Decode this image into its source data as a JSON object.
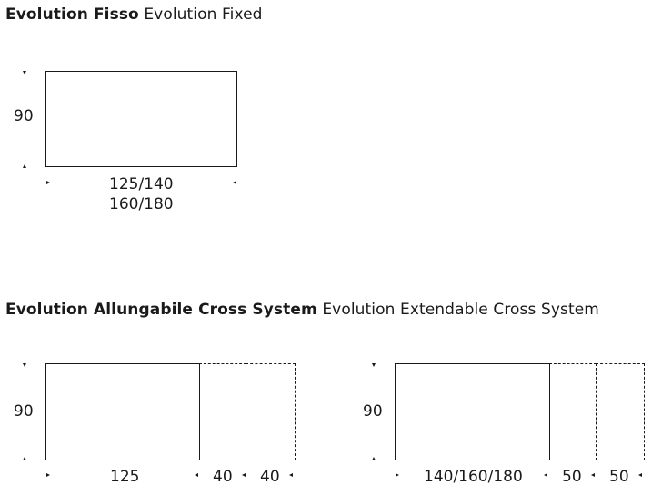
{
  "sections": [
    {
      "title_bold": "Evolution Fisso",
      "title_regular": "Evolution Fixed",
      "diagrams": [
        {
          "depth_label": "90",
          "length_label_line1": "125/140",
          "length_label_line2": "160/180"
        }
      ]
    },
    {
      "title_bold": "Evolution Allungabile Cross System",
      "title_regular": "Evolution Extendable Cross System",
      "diagrams": [
        {
          "depth_label": "90",
          "length_label": "125",
          "extension_labels": [
            "40",
            "40"
          ]
        },
        {
          "depth_label": "90",
          "length_label": "140/160/180",
          "extension_labels": [
            "50",
            "50"
          ]
        }
      ]
    }
  ]
}
